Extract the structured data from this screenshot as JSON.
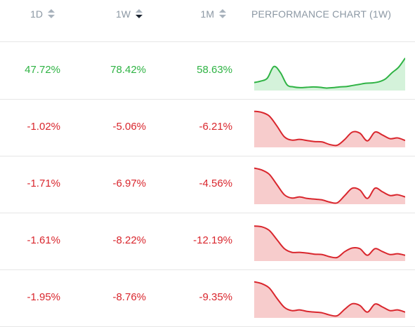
{
  "header": {
    "col_1d": "1D",
    "col_1w": "1W",
    "col_1m": "1M",
    "col_chart": "PERFORMANCE CHART (1W)",
    "active_sort": "1W"
  },
  "colors": {
    "positive": "#2fb344",
    "positive_fill": "#d4f2da",
    "negative": "#d9262d",
    "negative_fill": "#f7cccc"
  },
  "rows": [
    {
      "d1": "47.72%",
      "w1": "78.42%",
      "m1": "58.63%",
      "trend": "up",
      "spark": [
        0.18,
        0.22,
        0.3,
        0.62,
        0.45,
        0.12,
        0.06,
        0.04,
        0.05,
        0.06,
        0.05,
        0.03,
        0.04,
        0.06,
        0.07,
        0.1,
        0.13,
        0.16,
        0.17,
        0.2,
        0.28,
        0.45,
        0.6,
        0.85
      ]
    },
    {
      "d1": "-1.02%",
      "w1": "-5.06%",
      "m1": "-6.21%",
      "trend": "down",
      "spark": [
        0.95,
        0.92,
        0.82,
        0.55,
        0.25,
        0.16,
        0.18,
        0.15,
        0.12,
        0.11,
        0.04,
        0.02,
        0.18,
        0.38,
        0.35,
        0.14,
        0.38,
        0.3,
        0.2,
        0.22,
        0.15
      ]
    },
    {
      "d1": "-1.71%",
      "w1": "-6.97%",
      "m1": "-4.56%",
      "trend": "down",
      "spark": [
        0.95,
        0.9,
        0.78,
        0.5,
        0.22,
        0.13,
        0.16,
        0.12,
        0.1,
        0.08,
        0.02,
        0.0,
        0.2,
        0.4,
        0.35,
        0.12,
        0.4,
        0.3,
        0.2,
        0.22,
        0.16
      ]
    },
    {
      "d1": "-1.61%",
      "w1": "-8.22%",
      "m1": "-12.19%",
      "trend": "down",
      "spark": [
        0.92,
        0.9,
        0.8,
        0.55,
        0.3,
        0.2,
        0.2,
        0.18,
        0.15,
        0.14,
        0.08,
        0.06,
        0.22,
        0.32,
        0.3,
        0.12,
        0.3,
        0.22,
        0.14,
        0.16,
        0.12
      ]
    },
    {
      "d1": "-1.95%",
      "w1": "-8.76%",
      "m1": "-9.35%",
      "trend": "down",
      "spark": [
        0.95,
        0.9,
        0.78,
        0.5,
        0.25,
        0.16,
        0.18,
        0.14,
        0.12,
        0.1,
        0.04,
        0.02,
        0.2,
        0.35,
        0.3,
        0.12,
        0.34,
        0.26,
        0.16,
        0.18,
        0.12
      ]
    }
  ]
}
